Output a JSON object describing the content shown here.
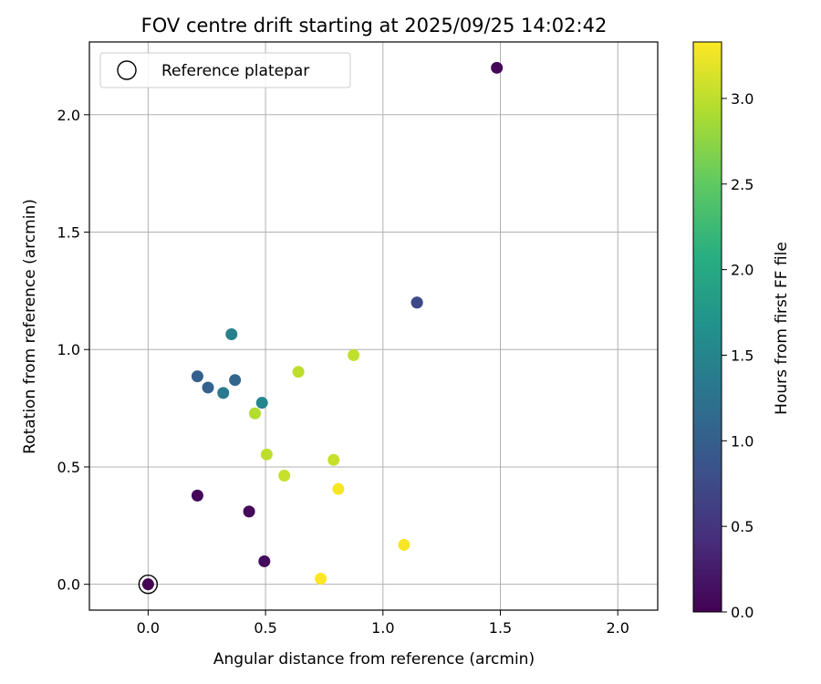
{
  "chart_data": {
    "type": "scatter",
    "title": "FOV centre drift starting at 2025/09/25 14:02:42",
    "xlabel": "Angular distance from reference (arcmin)",
    "ylabel": "Rotation from reference (arcmin)",
    "xlim": [
      -0.25,
      2.17
    ],
    "ylim": [
      -0.11,
      2.31
    ],
    "xticks": [
      0.0,
      0.5,
      1.0,
      1.5,
      2.0
    ],
    "yticks": [
      0.0,
      0.5,
      1.0,
      1.5,
      2.0
    ],
    "xtick_labels": [
      "0.0",
      "0.5",
      "1.0",
      "1.5",
      "2.0"
    ],
    "ytick_labels": [
      "0.0",
      "0.5",
      "1.0",
      "1.5",
      "2.0"
    ],
    "grid": true,
    "legend": {
      "position": "top-left",
      "entries": [
        "Reference platepar"
      ]
    },
    "colorbar": {
      "label": "Hours from first FF file",
      "range": [
        0.0,
        3.33
      ],
      "ticks": [
        0.0,
        0.5,
        1.0,
        1.5,
        2.0,
        2.5,
        3.0
      ],
      "tick_labels": [
        "0.0",
        "0.5",
        "1.0",
        "1.5",
        "2.0",
        "2.5",
        "3.0"
      ],
      "colormap": "viridis"
    },
    "reference": {
      "x": 0.0,
      "y": 0.0
    },
    "points": [
      {
        "x": 0.0,
        "y": 0.0,
        "hours": 0.0
      },
      {
        "x": 1.485,
        "y": 2.2,
        "hours": 0.05
      },
      {
        "x": 0.21,
        "y": 0.378,
        "hours": 0.05
      },
      {
        "x": 0.43,
        "y": 0.31,
        "hours": 0.08
      },
      {
        "x": 0.495,
        "y": 0.098,
        "hours": 0.1
      },
      {
        "x": 1.145,
        "y": 1.2,
        "hours": 0.72
      },
      {
        "x": 1.145,
        "y": 1.2,
        "hours": 0.74
      },
      {
        "x": 0.21,
        "y": 0.886,
        "hours": 1.0
      },
      {
        "x": 0.255,
        "y": 0.838,
        "hours": 1.05
      },
      {
        "x": 0.37,
        "y": 0.87,
        "hours": 1.1
      },
      {
        "x": 0.32,
        "y": 0.815,
        "hours": 1.35
      },
      {
        "x": 0.355,
        "y": 1.065,
        "hours": 1.45
      },
      {
        "x": 0.485,
        "y": 0.773,
        "hours": 1.5
      },
      {
        "x": 0.455,
        "y": 0.728,
        "hours": 2.95
      },
      {
        "x": 0.64,
        "y": 0.905,
        "hours": 3.0
      },
      {
        "x": 0.875,
        "y": 0.976,
        "hours": 3.02
      },
      {
        "x": 0.505,
        "y": 0.553,
        "hours": 3.0
      },
      {
        "x": 0.58,
        "y": 0.463,
        "hours": 3.05
      },
      {
        "x": 0.79,
        "y": 0.53,
        "hours": 3.05
      },
      {
        "x": 0.81,
        "y": 0.406,
        "hours": 3.3
      },
      {
        "x": 1.09,
        "y": 0.168,
        "hours": 3.3
      },
      {
        "x": 0.735,
        "y": 0.024,
        "hours": 3.33
      }
    ]
  }
}
